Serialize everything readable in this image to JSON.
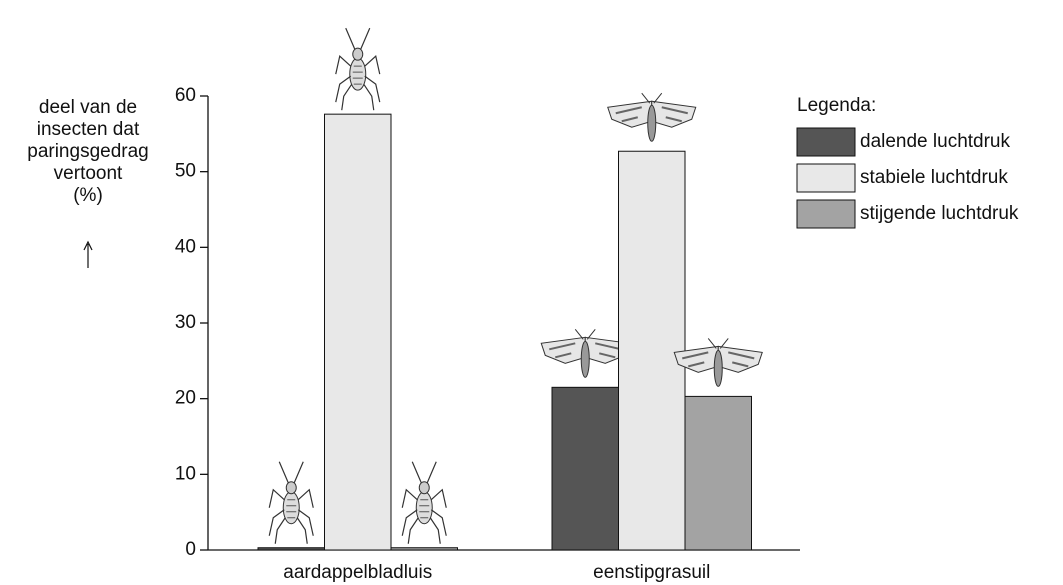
{
  "chart_data": {
    "type": "bar",
    "y_label": [
      "deel van de",
      "insecten dat",
      "paringsgedrag",
      "vertoont",
      "(%)"
    ],
    "categories": [
      "aardappelbladluis",
      "eenstipgrasuil"
    ],
    "series": [
      {
        "name": "dalende luchtdruk",
        "color": "#555555",
        "values": [
          0.3,
          21.5
        ]
      },
      {
        "name": "stabiele luchtdruk",
        "color": "#e8e8e8",
        "values": [
          57.6,
          52.7
        ]
      },
      {
        "name": "stijgende luchtdruk",
        "color": "#a3a3a3",
        "values": [
          0.3,
          20.3
        ]
      }
    ],
    "legend_title": "Legenda:",
    "ylim": [
      0,
      60
    ],
    "yticks": [
      0,
      10,
      20,
      30,
      40,
      50,
      60
    ],
    "grid": false
  }
}
